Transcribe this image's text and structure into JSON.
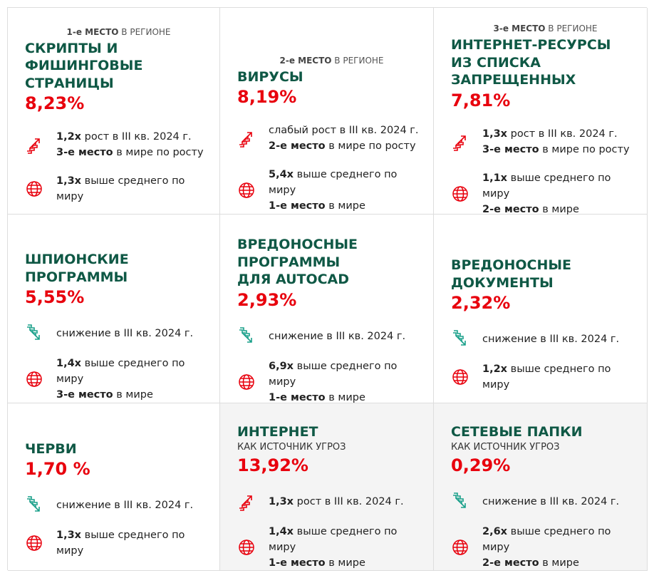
{
  "cells": [
    {
      "rank": {
        "bold": "1-е МЕСТО",
        "text": " В РЕГИОНЕ"
      },
      "title": [
        "СКРИПТЫ И",
        "ФИШИНГОВЫЕ",
        "СТРАНИЦЫ"
      ],
      "value": "8,23%",
      "trend": "up",
      "trend_lines": [
        {
          "bold": "1,2x",
          "text": " рост в III кв. 2024 г."
        },
        {
          "bold": "3-е место",
          "text": " в мире по росту"
        }
      ],
      "world_lines": [
        {
          "bold": "1,3x",
          "text": " выше среднего по миру"
        }
      ]
    },
    {
      "rank": {
        "bold": "2-е МЕСТО",
        "text": " В РЕГИОНЕ"
      },
      "title": [
        "ВИРУСЫ"
      ],
      "value": "8,19%",
      "trend": "up",
      "trend_lines": [
        {
          "text": "слабый рост в III кв. 2024 г."
        },
        {
          "bold": "2-е место",
          "text": " в мире по росту"
        }
      ],
      "world_lines": [
        {
          "bold": "5,4x",
          "text": " выше среднего по миру"
        },
        {
          "bold": "1-е место",
          "text": " в мире"
        }
      ]
    },
    {
      "rank": {
        "bold": "3-е МЕСТО",
        "text": " В РЕГИОНЕ"
      },
      "title": [
        "ИНТЕРНЕТ-РЕСУРСЫ",
        "ИЗ СПИСКА",
        "ЗАПРЕЩЕННЫХ"
      ],
      "value": "7,81%",
      "trend": "up",
      "trend_lines": [
        {
          "bold": "1,3x",
          "text": " рост в III кв. 2024 г."
        },
        {
          "bold": "3-е место",
          "text": " в мире по росту"
        }
      ],
      "world_lines": [
        {
          "bold": "1,1x",
          "text": " выше среднего по миру"
        },
        {
          "bold": "2-е место",
          "text": " в мире"
        }
      ]
    },
    {
      "title": [
        "ШПИОНСКИЕ",
        "ПРОГРАММЫ"
      ],
      "value": "5,55%",
      "trend": "down",
      "trend_lines": [
        {
          "text": "снижение в III кв. 2024 г."
        }
      ],
      "world_lines": [
        {
          "bold": "1,4x",
          "text": " выше среднего по миру"
        },
        {
          "bold": "3-е место",
          "text": " в мире"
        }
      ]
    },
    {
      "title": [
        "ВРЕДОНОСНЫЕ",
        "ПРОГРАММЫ",
        "ДЛЯ AUTOCAD"
      ],
      "value": "2,93%",
      "trend": "down",
      "trend_lines": [
        {
          "text": "снижение в III кв. 2024 г."
        }
      ],
      "world_lines": [
        {
          "bold": "6,9x",
          "text": " выше среднего по миру"
        },
        {
          "bold": "1-е место",
          "text": " в мире"
        }
      ]
    },
    {
      "title": [
        "ВРЕДОНОСНЫЕ",
        "ДОКУМЕНТЫ"
      ],
      "value": "2,32%",
      "trend": "down",
      "trend_lines": [
        {
          "text": "снижение в III кв. 2024 г."
        }
      ],
      "world_lines": [
        {
          "bold": "1,2x",
          "text": " выше среднего по миру"
        }
      ]
    },
    {
      "title": [
        "ЧЕРВИ"
      ],
      "value": "1,70 %",
      "trend": "down",
      "trend_lines": [
        {
          "text": "снижение в III кв. 2024 г."
        }
      ],
      "world_lines": [
        {
          "bold": "1,3x",
          "text": " выше среднего по миру"
        }
      ]
    },
    {
      "title": [
        "ИНТЕРНЕТ"
      ],
      "subtitle": "КАК ИСТОЧНИК УГРОЗ",
      "value": "13,92%",
      "trend": "up",
      "shaded": true,
      "trend_lines": [
        {
          "bold": "1,3x",
          "text": " рост в III кв. 2024 г."
        }
      ],
      "world_lines": [
        {
          "bold": "1,4x",
          "text": " выше среднего по миру"
        },
        {
          "bold": "1-е место",
          "text": " в мире"
        }
      ]
    },
    {
      "title": [
        "СЕТЕВЫЕ ПАПКИ"
      ],
      "subtitle": "КАК ИСТОЧНИК УГРОЗ",
      "value": "0,29%",
      "trend": "down",
      "shaded": true,
      "trend_lines": [
        {
          "text": "снижение в III кв. 2024 г."
        }
      ],
      "world_lines": [
        {
          "bold": "2,6x",
          "text": " выше среднего по миру"
        },
        {
          "bold": "2-е место",
          "text": " в мире"
        }
      ]
    }
  ]
}
